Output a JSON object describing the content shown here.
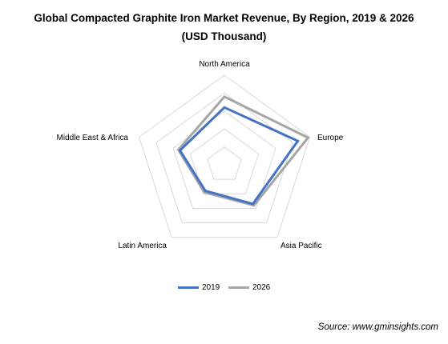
{
  "title": {
    "line1": "Global Compacted Graphite Iron Market Revenue, By Region, 2019 & 2026",
    "line2": "(USD Thousand)"
  },
  "source": "Source: www.gminsights.com",
  "colors": {
    "2019": "#4472c4",
    "2026": "#a5a5a5",
    "grid": "#d9d9d9"
  },
  "chart_data": {
    "type": "radar",
    "categories": [
      "North America",
      "Europe",
      "Asia Pacific",
      "Latin America",
      "Middle East & Africa"
    ],
    "scale": [
      0,
      5
    ],
    "grid_levels": 5,
    "legend_position": "bottom",
    "series": [
      {
        "name": "2019",
        "values": [
          3.2,
          4.3,
          2.7,
          1.8,
          2.6
        ]
      },
      {
        "name": "2026",
        "values": [
          3.8,
          4.9,
          2.8,
          1.9,
          2.7
        ]
      }
    ]
  }
}
